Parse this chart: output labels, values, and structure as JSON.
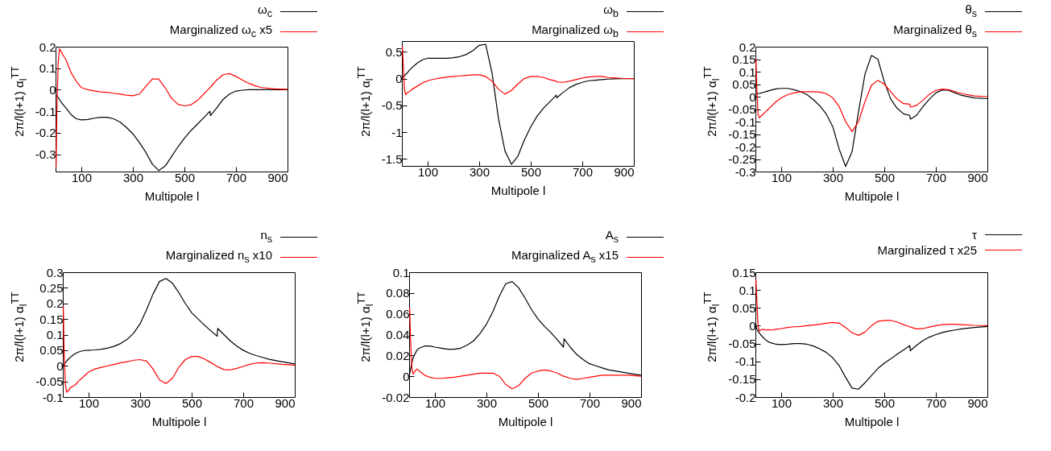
{
  "chart_data": [
    {
      "type": "line",
      "xlabel": "Multipole l",
      "ylabel": "2π/l(l+1) α$_{l}$$^{TT}$",
      "legend": "top right",
      "marker": "none",
      "line_style": "solid",
      "grid": false,
      "xlim": [
        0,
        900
      ],
      "xticks": [
        100,
        300,
        500,
        700,
        900
      ],
      "ylim": [
        -0.38,
        0.2
      ],
      "yticks": [
        -0.3,
        -0.2,
        -0.1,
        0,
        0.1,
        0.2
      ],
      "x": [
        2,
        5,
        10,
        15,
        20,
        30,
        40,
        50,
        60,
        80,
        100,
        125,
        150,
        175,
        200,
        225,
        250,
        275,
        300,
        325,
        350,
        375,
        400,
        425,
        450,
        475,
        500,
        525,
        550,
        575,
        599,
        601,
        625,
        650,
        675,
        700,
        725,
        750,
        775,
        800,
        850,
        900
      ],
      "series": [
        {
          "name": "ω$_{c}$",
          "color": "#000000",
          "values": [
            -0.025,
            -0.028,
            -0.035,
            -0.045,
            -0.055,
            -0.07,
            -0.085,
            -0.1,
            -0.115,
            -0.135,
            -0.14,
            -0.138,
            -0.132,
            -0.128,
            -0.128,
            -0.135,
            -0.15,
            -0.175,
            -0.205,
            -0.245,
            -0.29,
            -0.345,
            -0.375,
            -0.355,
            -0.31,
            -0.265,
            -0.225,
            -0.19,
            -0.16,
            -0.13,
            -0.1,
            -0.12,
            -0.085,
            -0.045,
            -0.02,
            -0.006,
            -0.002,
            0,
            0,
            0,
            0,
            0
          ]
        },
        {
          "name": "Marginalized ω$_{c}$ x5",
          "color": "#ff0000",
          "values": [
            -0.36,
            -0.1,
            0.12,
            0.19,
            0.18,
            0.16,
            0.14,
            0.11,
            0.08,
            0.04,
            0.01,
            0,
            -0.005,
            -0.01,
            -0.012,
            -0.016,
            -0.02,
            -0.025,
            -0.028,
            -0.02,
            0.015,
            0.05,
            0.05,
            0.01,
            -0.04,
            -0.068,
            -0.075,
            -0.07,
            -0.05,
            -0.02,
            0.01,
            0.012,
            0.045,
            0.07,
            0.075,
            0.062,
            0.045,
            0.03,
            0.018,
            0.01,
            0.004,
            0.002
          ]
        }
      ]
    },
    {
      "type": "line",
      "xlabel": "Multipole l",
      "ylabel": "2π/l(l+1) α$_{l}$$^{TT}$",
      "legend": "top right",
      "marker": "none",
      "line_style": "solid",
      "grid": false,
      "xlim": [
        0,
        900
      ],
      "xticks": [
        100,
        300,
        500,
        700,
        900
      ],
      "ylim": [
        -1.63,
        0.7
      ],
      "yticks": [
        -1.5,
        -1,
        -0.5,
        0,
        0.5
      ],
      "x": [
        2,
        5,
        10,
        15,
        20,
        30,
        40,
        50,
        60,
        80,
        100,
        125,
        150,
        175,
        200,
        225,
        250,
        275,
        300,
        325,
        350,
        375,
        400,
        425,
        450,
        475,
        500,
        525,
        550,
        575,
        599,
        601,
        625,
        650,
        675,
        700,
        725,
        750,
        775,
        800,
        850,
        900
      ],
      "series": [
        {
          "name": "ω$_{b}$",
          "color": "#000000",
          "values": [
            0.02,
            0.03,
            0.05,
            0.08,
            0.1,
            0.16,
            0.21,
            0.25,
            0.29,
            0.35,
            0.38,
            0.38,
            0.38,
            0.38,
            0.39,
            0.41,
            0.45,
            0.52,
            0.62,
            0.64,
            0.1,
            -0.75,
            -1.35,
            -1.6,
            -1.45,
            -1.15,
            -0.9,
            -0.7,
            -0.55,
            -0.43,
            -0.31,
            -0.36,
            -0.26,
            -0.17,
            -0.11,
            -0.07,
            -0.04,
            -0.03,
            -0.02,
            -0.01,
            0,
            0
          ]
        },
        {
          "name": "Marginalized ω$_{b}$",
          "color": "#ff0000",
          "values": [
            0.6,
            0.3,
            -0.2,
            -0.3,
            -0.27,
            -0.24,
            -0.2,
            -0.17,
            -0.14,
            -0.08,
            -0.04,
            -0.01,
            0.01,
            0.03,
            0.04,
            0.05,
            0.06,
            0.07,
            0.07,
            0.04,
            -0.05,
            -0.2,
            -0.29,
            -0.22,
            -0.1,
            0,
            0.04,
            0.04,
            0.02,
            -0.02,
            -0.05,
            -0.06,
            -0.07,
            -0.05,
            -0.02,
            0.01,
            0.03,
            0.04,
            0.04,
            0.02,
            0.005,
            0
          ]
        }
      ]
    },
    {
      "type": "line",
      "xlabel": "Multipole l",
      "ylabel": "2π/l(l+1) α$_{l}$$^{TT}$",
      "legend": "top right",
      "marker": "none",
      "line_style": "solid",
      "grid": false,
      "xlim": [
        0,
        900
      ],
      "xticks": [
        100,
        300,
        500,
        700,
        900
      ],
      "ylim": [
        -0.3,
        0.2
      ],
      "yticks": [
        -0.3,
        -0.25,
        -0.2,
        -0.15,
        -0.1,
        -0.05,
        0,
        0.05,
        0.1,
        0.15,
        0.2
      ],
      "x": [
        2,
        5,
        10,
        15,
        20,
        30,
        40,
        50,
        60,
        80,
        100,
        125,
        150,
        175,
        200,
        225,
        250,
        275,
        300,
        325,
        350,
        375,
        400,
        425,
        450,
        475,
        500,
        525,
        550,
        575,
        599,
        601,
        625,
        650,
        675,
        700,
        725,
        750,
        775,
        800,
        850,
        900
      ],
      "series": [
        {
          "name": "θ$_{s}$",
          "color": "#000000",
          "values": [
            0.013,
            0.012,
            0.012,
            0.013,
            0.014,
            0.017,
            0.02,
            0.023,
            0.026,
            0.031,
            0.033,
            0.033,
            0.028,
            0.02,
            0.008,
            -0.012,
            -0.037,
            -0.07,
            -0.12,
            -0.21,
            -0.28,
            -0.22,
            -0.06,
            0.09,
            0.165,
            0.15,
            0.06,
            -0.01,
            -0.047,
            -0.069,
            -0.075,
            -0.09,
            -0.075,
            -0.04,
            -0.01,
            0.015,
            0.027,
            0.025,
            0.015,
            0.005,
            -0.005,
            -0.008
          ]
        },
        {
          "name": "Marginalized θ$_{s}$",
          "color": "#ff0000",
          "values": [
            0.15,
            0.05,
            -0.07,
            -0.085,
            -0.08,
            -0.07,
            -0.06,
            -0.05,
            -0.04,
            -0.02,
            -0.005,
            0.008,
            0.015,
            0.02,
            0.02,
            0.02,
            0.018,
            0.012,
            -0.005,
            -0.04,
            -0.1,
            -0.14,
            -0.1,
            -0.02,
            0.045,
            0.065,
            0.05,
            0.02,
            -0.01,
            -0.028,
            -0.03,
            -0.042,
            -0.035,
            -0.015,
            0.01,
            0.025,
            0.03,
            0.028,
            0.02,
            0.012,
            0.003,
            0
          ]
        }
      ]
    },
    {
      "type": "line",
      "xlabel": "Multipole l",
      "ylabel": "2π/l(l+1) α$_{l}$$^{TT}$",
      "legend": "top right",
      "marker": "none",
      "line_style": "solid",
      "grid": false,
      "xlim": [
        0,
        900
      ],
      "xticks": [
        100,
        300,
        500,
        700,
        900
      ],
      "ylim": [
        -0.1,
        0.3
      ],
      "yticks": [
        -0.1,
        -0.05,
        0,
        0.05,
        0.1,
        0.15,
        0.2,
        0.25,
        0.3
      ],
      "x": [
        2,
        5,
        10,
        15,
        20,
        30,
        40,
        50,
        60,
        80,
        100,
        125,
        150,
        175,
        200,
        225,
        250,
        275,
        300,
        325,
        350,
        375,
        400,
        425,
        450,
        475,
        500,
        525,
        550,
        575,
        599,
        601,
        625,
        650,
        675,
        700,
        725,
        750,
        775,
        800,
        850,
        900
      ],
      "series": [
        {
          "name": "n$_{s}$",
          "color": "#000000",
          "values": [
            0,
            0.003,
            0.01,
            0.015,
            0.02,
            0.028,
            0.035,
            0.04,
            0.044,
            0.049,
            0.05,
            0.051,
            0.053,
            0.057,
            0.063,
            0.072,
            0.085,
            0.105,
            0.135,
            0.18,
            0.23,
            0.27,
            0.28,
            0.265,
            0.235,
            0.2,
            0.17,
            0.15,
            0.13,
            0.112,
            0.095,
            0.12,
            0.1,
            0.08,
            0.063,
            0.05,
            0.04,
            0.033,
            0.027,
            0.021,
            0.013,
            0.006
          ]
        },
        {
          "name": "Marginalized n$_{s}$ x10",
          "color": "#ff0000",
          "values": [
            0.19,
            0.05,
            -0.06,
            -0.085,
            -0.08,
            -0.07,
            -0.065,
            -0.06,
            -0.05,
            -0.035,
            -0.02,
            -0.01,
            -0.005,
            0,
            0.005,
            0.01,
            0.013,
            0.018,
            0.02,
            0.015,
            -0.01,
            -0.045,
            -0.057,
            -0.04,
            -0.005,
            0.02,
            0.03,
            0.03,
            0.022,
            0.01,
            -0.002,
            -0.003,
            -0.012,
            -0.013,
            -0.008,
            -0.002,
            0.005,
            0.009,
            0.01,
            0.009,
            0.005,
            0.002
          ]
        }
      ]
    },
    {
      "type": "line",
      "xlabel": "Multipole l",
      "ylabel": "2π/l(l+1) α$_{l}$$^{TT}$",
      "legend": "top right",
      "marker": "none",
      "line_style": "solid",
      "grid": false,
      "xlim": [
        0,
        900
      ],
      "xticks": [
        100,
        300,
        500,
        700,
        900
      ],
      "ylim": [
        -0.02,
        0.1
      ],
      "yticks": [
        -0.02,
        0,
        0.02,
        0.04,
        0.06,
        0.08,
        0.1
      ],
      "x": [
        2,
        5,
        10,
        15,
        20,
        30,
        40,
        50,
        60,
        80,
        100,
        125,
        150,
        175,
        200,
        225,
        250,
        275,
        300,
        325,
        350,
        375,
        400,
        425,
        450,
        475,
        500,
        525,
        550,
        575,
        599,
        601,
        625,
        650,
        675,
        700,
        725,
        750,
        775,
        800,
        850,
        900
      ],
      "series": [
        {
          "name": "A$_{s}$",
          "color": "#000000",
          "values": [
            0.002,
            0.006,
            0.012,
            0.017,
            0.02,
            0.025,
            0.027,
            0.028,
            0.029,
            0.029,
            0.028,
            0.027,
            0.026,
            0.026,
            0.027,
            0.03,
            0.034,
            0.041,
            0.05,
            0.062,
            0.077,
            0.089,
            0.091,
            0.085,
            0.075,
            0.064,
            0.055,
            0.048,
            0.042,
            0.035,
            0.028,
            0.036,
            0.028,
            0.021,
            0.016,
            0.012,
            0.01,
            0.008,
            0.006,
            0.005,
            0.003,
            0.001
          ]
        },
        {
          "name": "Marginalized A$_{s}$ x15",
          "color": "#ff0000",
          "values": [
            0.066,
            0.04,
            0.01,
            0.002,
            0.004,
            0.007,
            0.005,
            0.003,
            0.001,
            -0.001,
            -0.002,
            -0.002,
            -0.0015,
            -0.001,
            0,
            0.001,
            0.002,
            0.003,
            0.003,
            0.003,
            0,
            -0.008,
            -0.012,
            -0.009,
            -0.002,
            0.003,
            0.005,
            0.006,
            0.005,
            0.003,
            0,
            0,
            -0.002,
            -0.003,
            -0.002,
            -0.001,
            0,
            0.001,
            0.001,
            0.001,
            0.001,
            0
          ]
        }
      ]
    },
    {
      "type": "line",
      "xlabel": "Multipole l",
      "ylabel": "2π/l(l+1) α$_{l}$$^{TT}$",
      "legend": "top right",
      "marker": "none",
      "line_style": "solid",
      "grid": false,
      "xlim": [
        0,
        900
      ],
      "xticks": [
        100,
        300,
        500,
        700,
        900
      ],
      "ylim": [
        -0.2,
        0.15
      ],
      "yticks": [
        -0.2,
        -0.15,
        -0.1,
        -0.05,
        0,
        0.05,
        0.1,
        0.15
      ],
      "x": [
        2,
        5,
        10,
        15,
        20,
        30,
        40,
        50,
        60,
        80,
        100,
        125,
        150,
        175,
        200,
        225,
        250,
        275,
        300,
        325,
        350,
        375,
        400,
        425,
        450,
        475,
        500,
        525,
        550,
        575,
        599,
        601,
        625,
        650,
        675,
        700,
        725,
        750,
        775,
        800,
        850,
        900
      ],
      "series": [
        {
          "name": "τ",
          "color": "#000000",
          "values": [
            0,
            -0.008,
            -0.015,
            -0.02,
            -0.025,
            -0.033,
            -0.04,
            -0.045,
            -0.048,
            -0.052,
            -0.053,
            -0.052,
            -0.05,
            -0.05,
            -0.052,
            -0.057,
            -0.065,
            -0.075,
            -0.09,
            -0.112,
            -0.145,
            -0.175,
            -0.178,
            -0.16,
            -0.14,
            -0.12,
            -0.105,
            -0.093,
            -0.08,
            -0.068,
            -0.056,
            -0.07,
            -0.055,
            -0.042,
            -0.032,
            -0.025,
            -0.019,
            -0.015,
            -0.012,
            -0.009,
            -0.005,
            -0.002
          ]
        },
        {
          "name": "Marginalized τ x25",
          "color": "#ff0000",
          "values": [
            0.13,
            0.08,
            0,
            -0.015,
            -0.012,
            -0.01,
            -0.012,
            -0.011,
            -0.012,
            -0.01,
            -0.008,
            -0.005,
            -0.003,
            -0.002,
            0,
            0.002,
            0.004,
            0.007,
            0.009,
            0.007,
            -0.005,
            -0.02,
            -0.027,
            -0.018,
            0,
            0.012,
            0.015,
            0.015,
            0.01,
            0.003,
            -0.003,
            -0.004,
            -0.009,
            -0.008,
            -0.004,
            0,
            0.003,
            0.004,
            0.004,
            0.003,
            0.001,
            0
          ]
        }
      ]
    }
  ]
}
